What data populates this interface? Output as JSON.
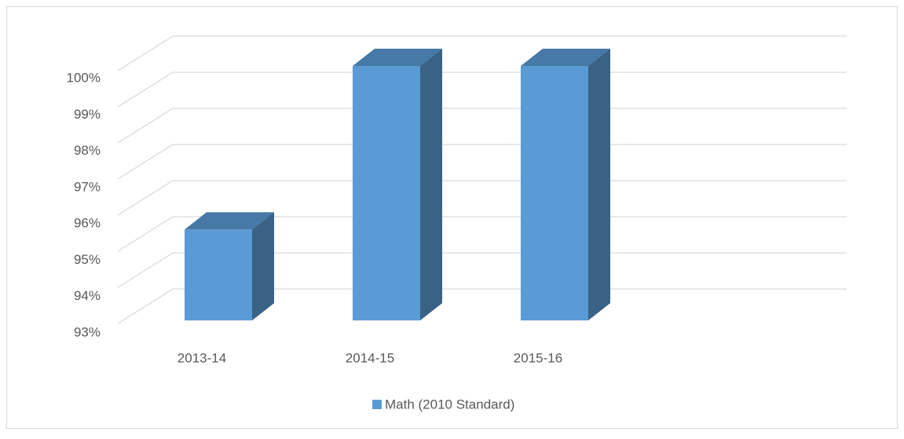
{
  "chart_data": {
    "type": "bar3d",
    "categories": [
      "2013-14",
      "2014-15",
      "2015-16"
    ],
    "series": [
      {
        "name": "Math (2010 Standard)",
        "color": "#5b9bd5",
        "values": [
          95.5,
          100,
          100
        ]
      }
    ],
    "ylim": [
      93,
      100
    ],
    "yticks": [
      {
        "value": 93,
        "label": "93%"
      },
      {
        "value": 94,
        "label": "94%"
      },
      {
        "value": 95,
        "label": "95%"
      },
      {
        "value": 96,
        "label": "96%"
      },
      {
        "value": 97,
        "label": "97%"
      },
      {
        "value": 98,
        "label": "98%"
      },
      {
        "value": 99,
        "label": "99%"
      },
      {
        "value": 100,
        "label": "100%"
      }
    ],
    "grid": true,
    "legend": "bottom"
  }
}
